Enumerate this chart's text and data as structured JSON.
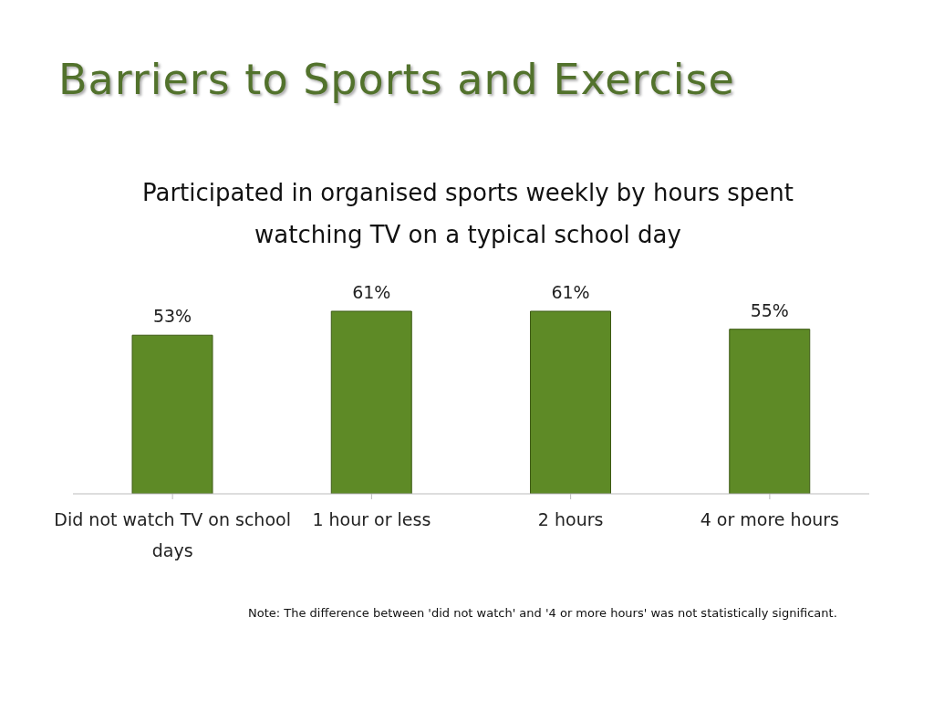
{
  "chart_data": {
    "type": "bar",
    "title": "Barriers to Sports and Exercise",
    "subtitle": "Participated in organised sports weekly by hours spent watching TV on a typical school day",
    "categories": [
      "Did not watch TV on school days",
      "1 hour or less",
      "2 hours",
      "4 or more hours"
    ],
    "values": [
      53,
      61,
      61,
      55
    ],
    "value_labels": [
      "53%",
      "61%",
      "61%",
      "55%"
    ],
    "color": "#5e8a26",
    "annotations": [
      "Note: The difference between 'did not watch' and '4 or more hours' was not statistically significant."
    ]
  }
}
